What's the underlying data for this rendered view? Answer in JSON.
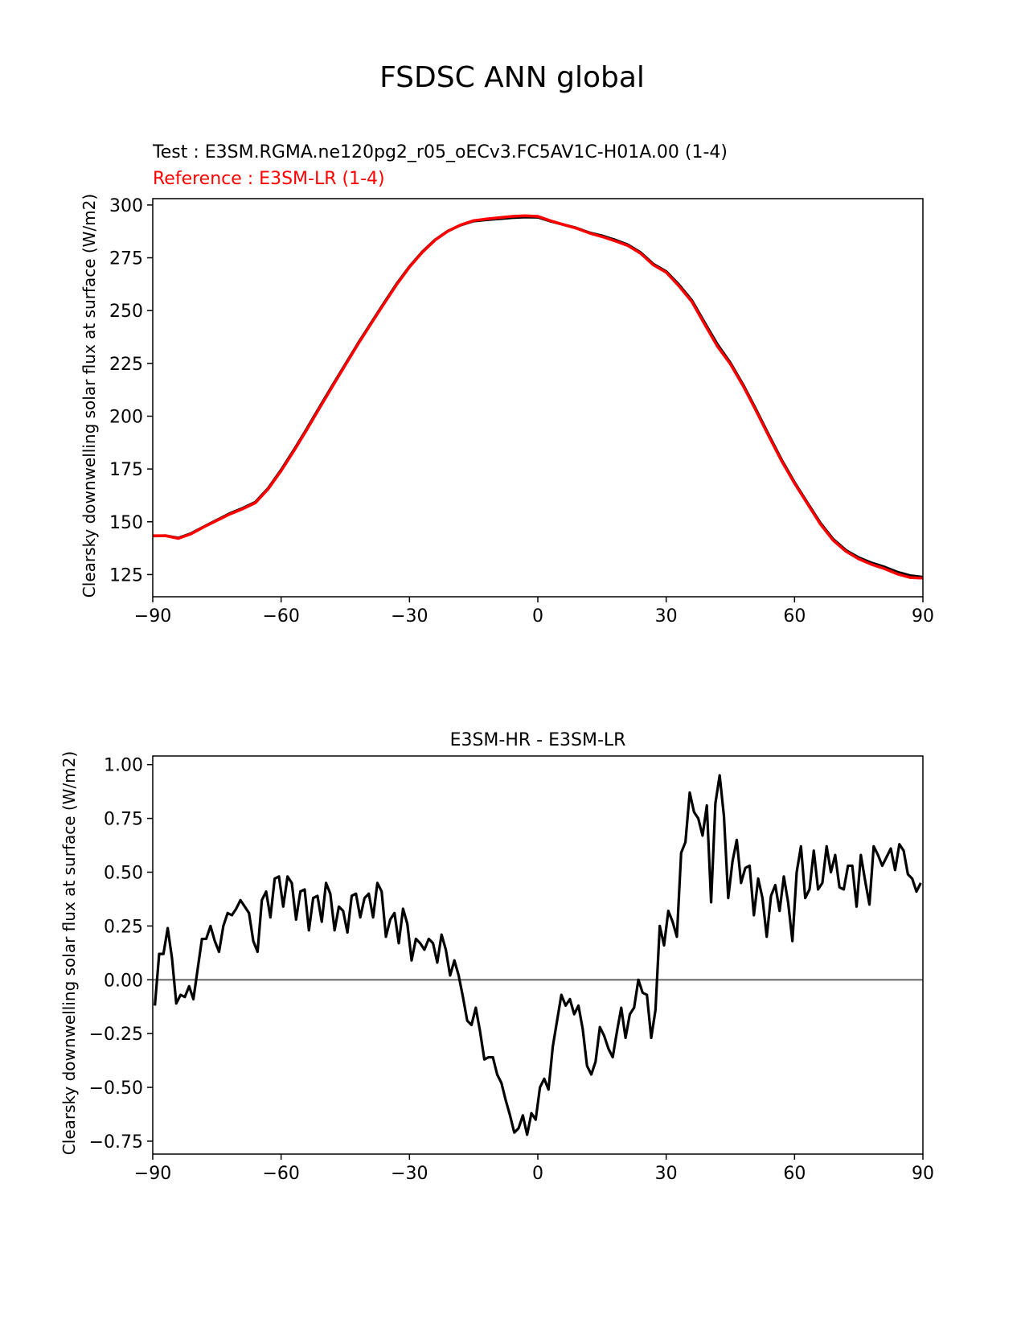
{
  "figure": {
    "suptitle": "FSDSC ANN global"
  },
  "chart_data": [
    {
      "type": "line",
      "title_test": "Test : E3SM.RGMA.ne120pg2_r05_oECv3.FC5AV1C-H01A.00 (1-4)",
      "title_reference": "Reference : E3SM-LR (1-4)",
      "xlabel": "",
      "ylabel": "Clearsky downwelling solar flux at surface (W/m2)",
      "xlim": [
        -90,
        90
      ],
      "ylim": [
        114.5,
        303
      ],
      "xticks": [
        -90,
        -60,
        -30,
        0,
        30,
        60,
        90
      ],
      "xtick_labels": [
        "−90",
        "−60",
        "−30",
        "0",
        "30",
        "60",
        "90"
      ],
      "yticks": [
        125,
        150,
        175,
        200,
        225,
        250,
        275,
        300
      ],
      "ytick_labels": [
        "125",
        "150",
        "175",
        "200",
        "225",
        "250",
        "275",
        "300"
      ],
      "series": [
        {
          "name": "Test",
          "color": "#000000",
          "x": [
            -90,
            -87,
            -84,
            -81,
            -78,
            -75,
            -72,
            -69,
            -66,
            -63,
            -60,
            -57,
            -54,
            -51,
            -48,
            -45,
            -42,
            -39,
            -36,
            -33,
            -30,
            -27,
            -24,
            -21,
            -18,
            -15,
            -12,
            -9,
            -6,
            -3,
            0,
            3,
            6,
            9,
            12,
            15,
            18,
            21,
            24,
            27,
            30,
            33,
            36,
            39,
            42,
            45,
            48,
            51,
            54,
            57,
            60,
            63,
            66,
            69,
            72,
            75,
            78,
            81,
            84,
            87,
            90
          ],
          "values": [
            143.3,
            143.4,
            142.3,
            144.5,
            147.7,
            150.8,
            153.9,
            156.4,
            159.3,
            165.9,
            174.5,
            184.0,
            194.0,
            204.3,
            214.5,
            224.5,
            234.5,
            244.0,
            253.4,
            262.6,
            270.8,
            277.8,
            283.5,
            287.7,
            290.5,
            292.4,
            293.0,
            293.5,
            294.0,
            294.3,
            294.2,
            292.3,
            290.7,
            289.1,
            286.9,
            285.4,
            283.5,
            281.2,
            277.5,
            272.0,
            268.5,
            262.2,
            254.8,
            244.2,
            233.9,
            225.2,
            214.8,
            203.1,
            191.0,
            179.2,
            168.6,
            159.0,
            149.5,
            141.8,
            136.5,
            133.0,
            130.5,
            128.6,
            126.2,
            124.5,
            123.8
          ]
        },
        {
          "name": "Reference",
          "color": "#ff0000",
          "x": [
            -90,
            -87,
            -84,
            -81,
            -78,
            -75,
            -72,
            -69,
            -66,
            -63,
            -60,
            -57,
            -54,
            -51,
            -48,
            -45,
            -42,
            -39,
            -36,
            -33,
            -30,
            -27,
            -24,
            -21,
            -18,
            -15,
            -12,
            -9,
            -6,
            -3,
            0,
            3,
            6,
            9,
            12,
            15,
            18,
            21,
            24,
            27,
            30,
            33,
            36,
            39,
            42,
            45,
            48,
            51,
            54,
            57,
            60,
            63,
            66,
            69,
            72,
            75,
            78,
            81,
            84,
            87,
            90
          ],
          "values": [
            143.4,
            143.4,
            142.1,
            144.3,
            147.6,
            150.6,
            153.6,
            156.1,
            159.0,
            165.6,
            174.1,
            183.6,
            193.6,
            203.9,
            214.1,
            224.2,
            234.2,
            243.7,
            253.1,
            262.3,
            270.6,
            277.6,
            283.4,
            287.6,
            290.6,
            292.6,
            293.4,
            294.0,
            294.6,
            294.9,
            294.6,
            292.5,
            290.7,
            289.0,
            286.7,
            285.0,
            283.0,
            280.8,
            277.1,
            271.6,
            268.1,
            261.6,
            254.2,
            243.5,
            233.0,
            224.7,
            214.3,
            202.6,
            190.5,
            178.7,
            168.2,
            158.6,
            149.0,
            141.3,
            136.0,
            132.4,
            129.8,
            127.8,
            125.3,
            123.6,
            123.3
          ]
        }
      ]
    },
    {
      "type": "line",
      "title": "E3SM-HR - E3SM-LR",
      "xlabel": "",
      "ylabel": "Clearsky downwelling solar flux at surface (W/m2)",
      "xlim": [
        -90,
        90
      ],
      "ylim": [
        -0.81,
        1.04
      ],
      "xticks": [
        -90,
        -60,
        -30,
        0,
        30,
        60,
        90
      ],
      "xtick_labels": [
        "−90",
        "−60",
        "−30",
        "0",
        "30",
        "60",
        "90"
      ],
      "yticks": [
        -0.75,
        -0.5,
        -0.25,
        0.0,
        0.25,
        0.5,
        0.75,
        1.0
      ],
      "ytick_labels": [
        "−0.75",
        "−0.50",
        "−0.25",
        "0.00",
        "0.25",
        "0.50",
        "0.75",
        "1.00"
      ],
      "zero_line": {
        "y": 0,
        "color": "#808080"
      },
      "series": [
        {
          "name": "E3SM-HR - E3SM-LR",
          "color": "#000000",
          "x": [
            -89.5,
            -88.5,
            -87.5,
            -86.5,
            -85.5,
            -84.5,
            -83.5,
            -82.5,
            -81.5,
            -80.5,
            -79.5,
            -78.5,
            -77.5,
            -76.5,
            -75.5,
            -74.5,
            -73.5,
            -72.5,
            -71.5,
            -70.5,
            -69.5,
            -68.5,
            -67.5,
            -66.5,
            -65.5,
            -64.5,
            -63.5,
            -62.5,
            -61.5,
            -60.5,
            -59.5,
            -58.5,
            -57.5,
            -56.5,
            -55.5,
            -54.5,
            -53.5,
            -52.5,
            -51.5,
            -50.5,
            -49.5,
            -48.5,
            -47.5,
            -46.5,
            -45.5,
            -44.5,
            -43.5,
            -42.5,
            -41.5,
            -40.5,
            -39.5,
            -38.5,
            -37.5,
            -36.5,
            -35.5,
            -34.5,
            -33.5,
            -32.5,
            -31.5,
            -30.5,
            -29.5,
            -28.5,
            -27.5,
            -26.5,
            -25.5,
            -24.5,
            -23.5,
            -22.5,
            -21.5,
            -20.5,
            -19.5,
            -18.5,
            -17.5,
            -16.5,
            -15.5,
            -14.5,
            -13.5,
            -12.5,
            -11.5,
            -10.5,
            -9.5,
            -8.5,
            -7.5,
            -6.5,
            -5.5,
            -4.5,
            -3.5,
            -2.5,
            -1.5,
            -0.5,
            0.5,
            1.5,
            2.5,
            3.5,
            4.5,
            5.5,
            6.5,
            7.5,
            8.5,
            9.5,
            10.5,
            11.5,
            12.5,
            13.5,
            14.5,
            15.5,
            16.5,
            17.5,
            18.5,
            19.5,
            20.5,
            21.5,
            22.5,
            23.5,
            24.5,
            25.5,
            26.5,
            27.5,
            28.5,
            29.5,
            30.5,
            31.5,
            32.5,
            33.5,
            34.5,
            35.5,
            36.5,
            37.5,
            38.5,
            39.5,
            40.5,
            41.5,
            42.5,
            43.5,
            44.5,
            45.5,
            46.5,
            47.5,
            48.5,
            49.5,
            50.5,
            51.5,
            52.5,
            53.5,
            54.5,
            55.5,
            56.5,
            57.5,
            58.5,
            59.5,
            60.5,
            61.5,
            62.5,
            63.5,
            64.5,
            65.5,
            66.5,
            67.5,
            68.5,
            69.5,
            70.5,
            71.5,
            72.5,
            73.5,
            74.5,
            75.5,
            76.5,
            77.5,
            78.5,
            79.5,
            80.5,
            81.5,
            82.5,
            83.5,
            84.5,
            85.5,
            86.5,
            87.5,
            88.5,
            89.5
          ],
          "values": [
            -0.12,
            0.12,
            0.12,
            0.24,
            0.1,
            -0.11,
            -0.07,
            -0.08,
            -0.03,
            -0.09,
            0.05,
            0.19,
            0.19,
            0.25,
            0.18,
            0.13,
            0.25,
            0.31,
            0.3,
            0.33,
            0.37,
            0.34,
            0.31,
            0.18,
            0.13,
            0.37,
            0.41,
            0.29,
            0.47,
            0.48,
            0.34,
            0.48,
            0.45,
            0.28,
            0.41,
            0.42,
            0.23,
            0.38,
            0.39,
            0.27,
            0.45,
            0.4,
            0.23,
            0.34,
            0.32,
            0.22,
            0.39,
            0.4,
            0.29,
            0.38,
            0.4,
            0.29,
            0.45,
            0.41,
            0.2,
            0.28,
            0.31,
            0.17,
            0.33,
            0.26,
            0.09,
            0.19,
            0.17,
            0.14,
            0.19,
            0.17,
            0.08,
            0.21,
            0.14,
            0.02,
            0.09,
            0.02,
            -0.08,
            -0.19,
            -0.21,
            -0.13,
            -0.24,
            -0.37,
            -0.36,
            -0.36,
            -0.44,
            -0.48,
            -0.56,
            -0.63,
            -0.71,
            -0.69,
            -0.63,
            -0.72,
            -0.62,
            -0.65,
            -0.5,
            -0.46,
            -0.51,
            -0.31,
            -0.19,
            -0.07,
            -0.12,
            -0.09,
            -0.16,
            -0.12,
            -0.23,
            -0.4,
            -0.44,
            -0.38,
            -0.22,
            -0.26,
            -0.32,
            -0.36,
            -0.24,
            -0.13,
            -0.27,
            -0.16,
            -0.13,
            0.0,
            -0.06,
            -0.07,
            -0.27,
            -0.14,
            0.25,
            0.16,
            0.32,
            0.27,
            0.2,
            0.59,
            0.64,
            0.87,
            0.78,
            0.75,
            0.67,
            0.81,
            0.36,
            0.82,
            0.95,
            0.76,
            0.38,
            0.55,
            0.65,
            0.45,
            0.52,
            0.53,
            0.3,
            0.47,
            0.38,
            0.2,
            0.39,
            0.44,
            0.32,
            0.48,
            0.36,
            0.18,
            0.5,
            0.62,
            0.38,
            0.42,
            0.6,
            0.42,
            0.45,
            0.62,
            0.5,
            0.58,
            0.43,
            0.42,
            0.53,
            0.53,
            0.34,
            0.58,
            0.46,
            0.35,
            0.62,
            0.58,
            0.53,
            0.57,
            0.61,
            0.51,
            0.63,
            0.6,
            0.49,
            0.47,
            0.41,
            0.45
          ]
        }
      ]
    }
  ]
}
